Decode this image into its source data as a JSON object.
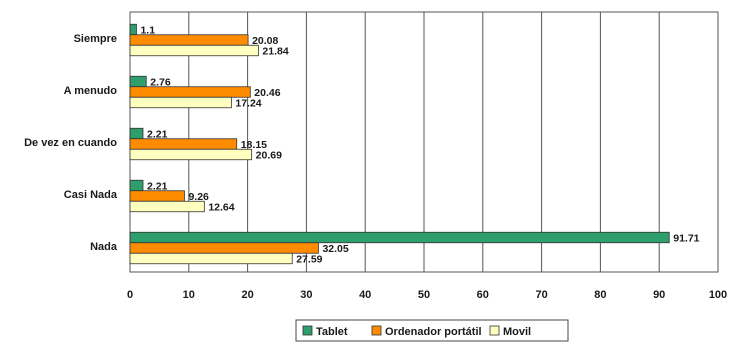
{
  "chart_data": {
    "type": "bar",
    "orientation": "horizontal",
    "categories": [
      "Siempre",
      "A menudo",
      "De vez en cuando",
      "Casi Nada",
      "Nada"
    ],
    "series": [
      {
        "name": "Tablet",
        "color": "#2e9e6b",
        "values": [
          1.1,
          2.76,
          2.21,
          2.21,
          91.71
        ],
        "labels": [
          "1.1",
          "2.76",
          "2.21",
          "2.21",
          "91.71"
        ]
      },
      {
        "name": "Ordenador portátil",
        "color": "#ff8c00",
        "values": [
          20.08,
          20.46,
          18.15,
          9.26,
          32.05
        ],
        "labels": [
          "20.08",
          "20.46",
          "18.15",
          "9.26",
          "32.05"
        ]
      },
      {
        "name": "Movil",
        "color": "#ffffc0",
        "values": [
          21.84,
          17.24,
          20.69,
          12.64,
          27.59
        ],
        "labels": [
          "21.84",
          "17.24",
          "20.69",
          "12.64",
          "27.59"
        ]
      }
    ],
    "xlim": [
      0,
      100
    ],
    "xticks": [
      "0",
      "10",
      "20",
      "30",
      "40",
      "50",
      "60",
      "70",
      "80",
      "90",
      "100"
    ],
    "grid": true,
    "legend_position": "bottom",
    "title": "",
    "xlabel": "",
    "ylabel": ""
  }
}
